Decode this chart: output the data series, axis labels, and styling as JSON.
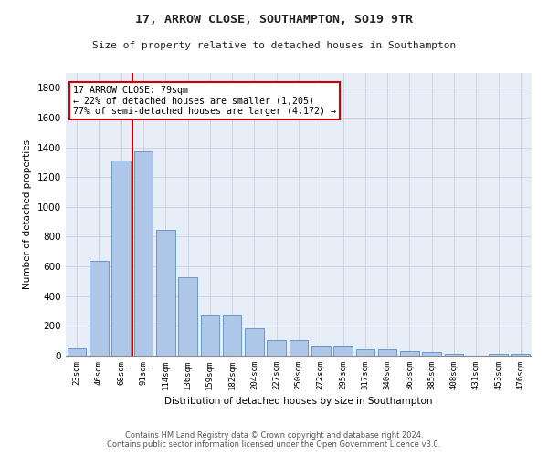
{
  "title1": "17, ARROW CLOSE, SOUTHAMPTON, SO19 9TR",
  "title2": "Size of property relative to detached houses in Southampton",
  "xlabel": "Distribution of detached houses by size in Southampton",
  "ylabel": "Number of detached properties",
  "categories": [
    "23sqm",
    "46sqm",
    "68sqm",
    "91sqm",
    "114sqm",
    "136sqm",
    "159sqm",
    "182sqm",
    "204sqm",
    "227sqm",
    "250sqm",
    "272sqm",
    "295sqm",
    "317sqm",
    "340sqm",
    "363sqm",
    "385sqm",
    "408sqm",
    "431sqm",
    "453sqm",
    "476sqm"
  ],
  "values": [
    50,
    640,
    1310,
    1375,
    845,
    530,
    275,
    275,
    185,
    105,
    105,
    65,
    65,
    40,
    40,
    30,
    25,
    15,
    0,
    15,
    15
  ],
  "bar_color": "#aec6e8",
  "bar_edge_color": "#5a8fc2",
  "grid_color": "#c8d0e0",
  "bg_color": "#e8eef8",
  "annotation_text": "17 ARROW CLOSE: 79sqm\n← 22% of detached houses are smaller (1,205)\n77% of semi-detached houses are larger (4,172) →",
  "annotation_box_color": "#ffffff",
  "annotation_border_color": "#cc0000",
  "footer1": "Contains HM Land Registry data © Crown copyright and database right 2024.",
  "footer2": "Contains public sector information licensed under the Open Government Licence v3.0.",
  "ylim": [
    0,
    1900
  ],
  "yticks": [
    0,
    200,
    400,
    600,
    800,
    1000,
    1200,
    1400,
    1600,
    1800
  ],
  "redline_x": 2.5,
  "fig_width": 6.0,
  "fig_height": 5.0,
  "dpi": 100
}
